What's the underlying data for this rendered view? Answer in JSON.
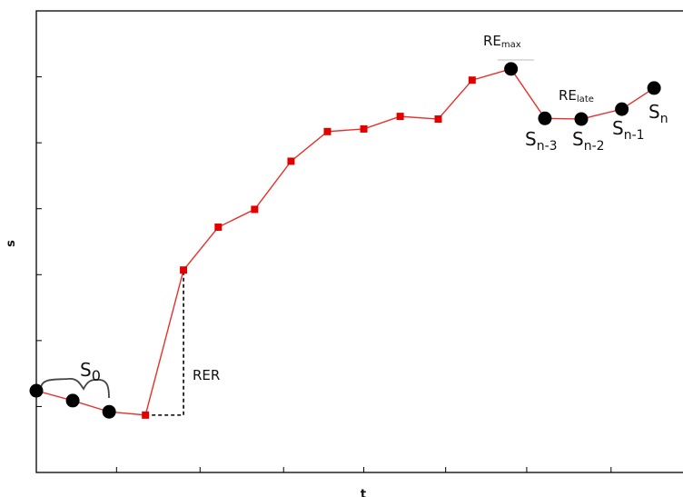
{
  "chart_data": {
    "type": "line",
    "x_label": "t",
    "y_label": "s",
    "x": [
      0,
      0.44,
      0.88,
      1.32,
      1.78,
      2.2,
      2.64,
      3.08,
      3.52,
      3.96,
      4.4,
      4.86,
      5.27,
      5.74,
      6.15,
      6.59,
      7.08,
      7.47
    ],
    "y": [
      1.24,
      1.09,
      0.92,
      0.87,
      3.07,
      3.72,
      3.99,
      4.72,
      5.17,
      5.21,
      5.4,
      5.36,
      5.95,
      6.12,
      5.37,
      5.36,
      5.51,
      5.83
    ],
    "markers": [
      "circle",
      "circle",
      "circle",
      "square",
      "square",
      "square",
      "square",
      "square",
      "square",
      "square",
      "square",
      "square",
      "square",
      "circle",
      "circle",
      "circle",
      "circle",
      "circle"
    ],
    "line_color": "#e8302a",
    "square_color": "#e00000",
    "circle_color": "#000000",
    "xlim": [
      0,
      7.82
    ],
    "ylim": [
      0,
      7
    ],
    "xticks": [
      0.97,
      1.98,
      2.99,
      3.96,
      4.95,
      5.93,
      6.95
    ],
    "yticks": [
      1,
      2,
      3,
      4,
      5,
      6
    ],
    "annotations": [
      {
        "text": "S",
        "sub": "0"
      },
      {
        "text": "RER"
      },
      {
        "text": "RE",
        "sub": "max"
      },
      {
        "text": "RE",
        "sub": "late"
      },
      {
        "text": "S",
        "sub": "n-3"
      },
      {
        "text": "S",
        "sub": "n-2"
      },
      {
        "text": "S",
        "sub": "n-1"
      },
      {
        "text": "S",
        "sub": "n"
      }
    ]
  }
}
